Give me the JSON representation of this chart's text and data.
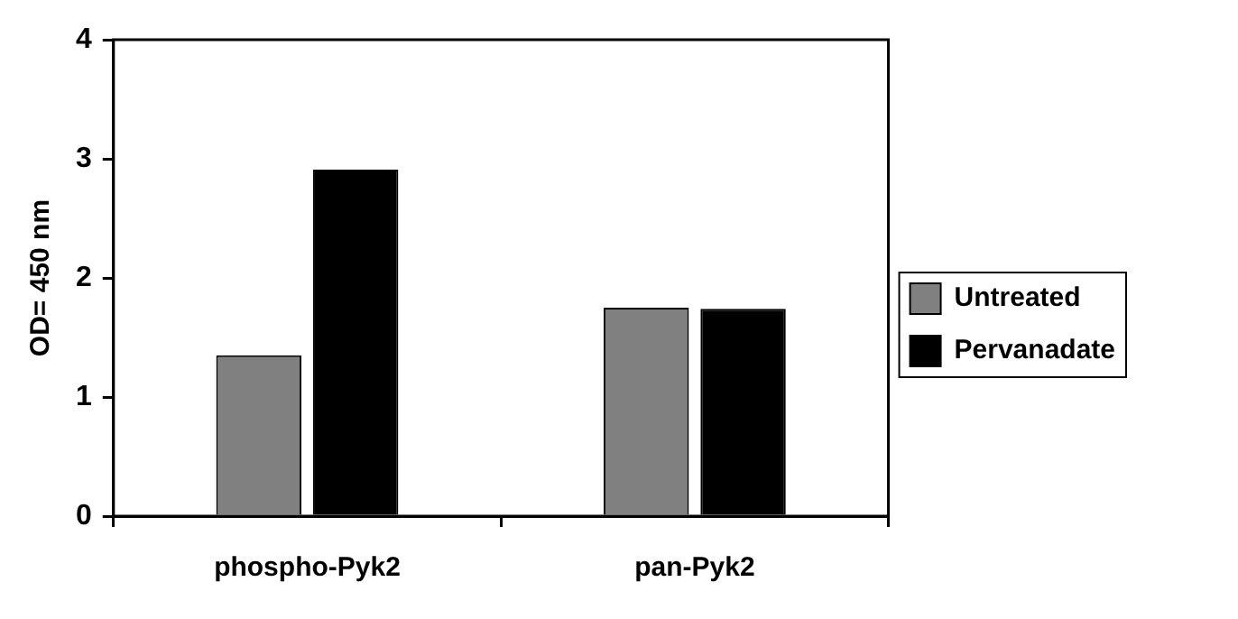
{
  "chart_data": {
    "type": "bar",
    "ylabel": "OD= 450 nm",
    "categories": [
      "phospho-Pyk2",
      "pan-Pyk2"
    ],
    "series": [
      {
        "name": "Untreated",
        "color": "#808080",
        "values": [
          1.35,
          1.75
        ]
      },
      {
        "name": "Pervanadate",
        "color": "#000000",
        "values": [
          2.91,
          1.74
        ]
      }
    ],
    "ylim": [
      0,
      4
    ],
    "yticks": [
      0,
      1,
      2,
      3,
      4
    ],
    "grid": false,
    "legend": "right"
  }
}
